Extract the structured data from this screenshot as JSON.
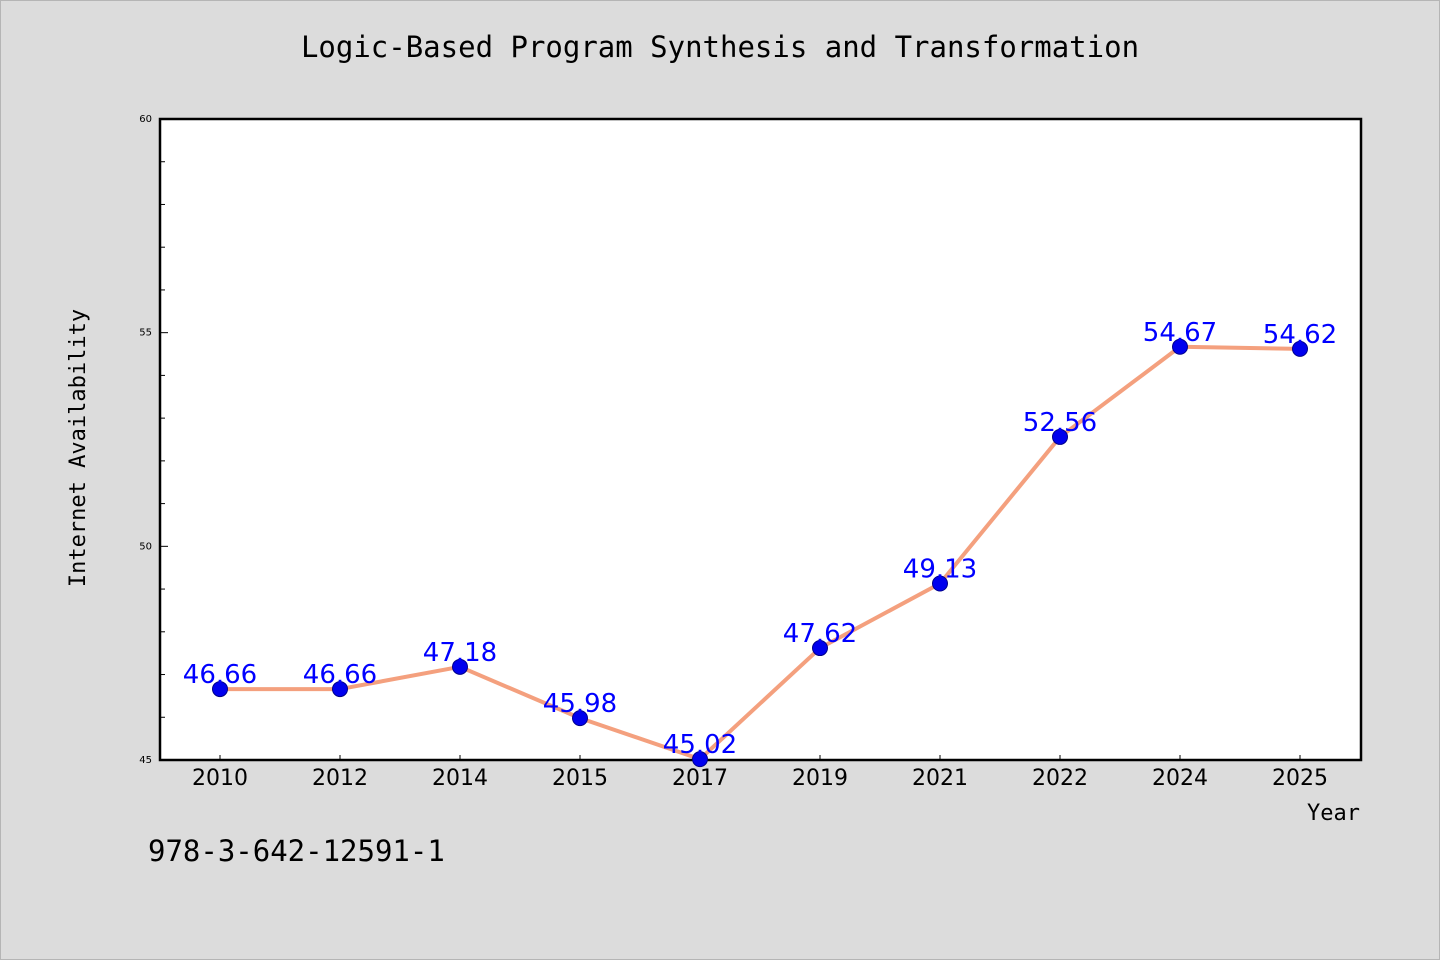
{
  "chart_data": {
    "type": "line",
    "title": "Logic-Based Program Synthesis and Transformation",
    "xlabel": "Year",
    "ylabel": "Internet Availability",
    "categories": [
      "2010",
      "2012",
      "2014",
      "2015",
      "2017",
      "2019",
      "2021",
      "2022",
      "2024",
      "2025"
    ],
    "values": [
      46.66,
      46.66,
      47.18,
      45.98,
      45.02,
      47.62,
      49.13,
      52.56,
      54.67,
      54.62
    ],
    "data_labels": [
      "46.66",
      "46.66",
      "47.18",
      "45.98",
      "45.02",
      "47.62",
      "49.13",
      "52.56",
      "54.67",
      "54.62"
    ],
    "ylim": [
      45,
      60
    ],
    "yticks": [
      "45",
      "50",
      "55",
      "60"
    ],
    "grid": false,
    "line_color": "#f4a07e",
    "marker_color": "#0000ee",
    "label_color": "#0000ff"
  },
  "footer": {
    "isbn": "978-3-642-12591-1"
  }
}
